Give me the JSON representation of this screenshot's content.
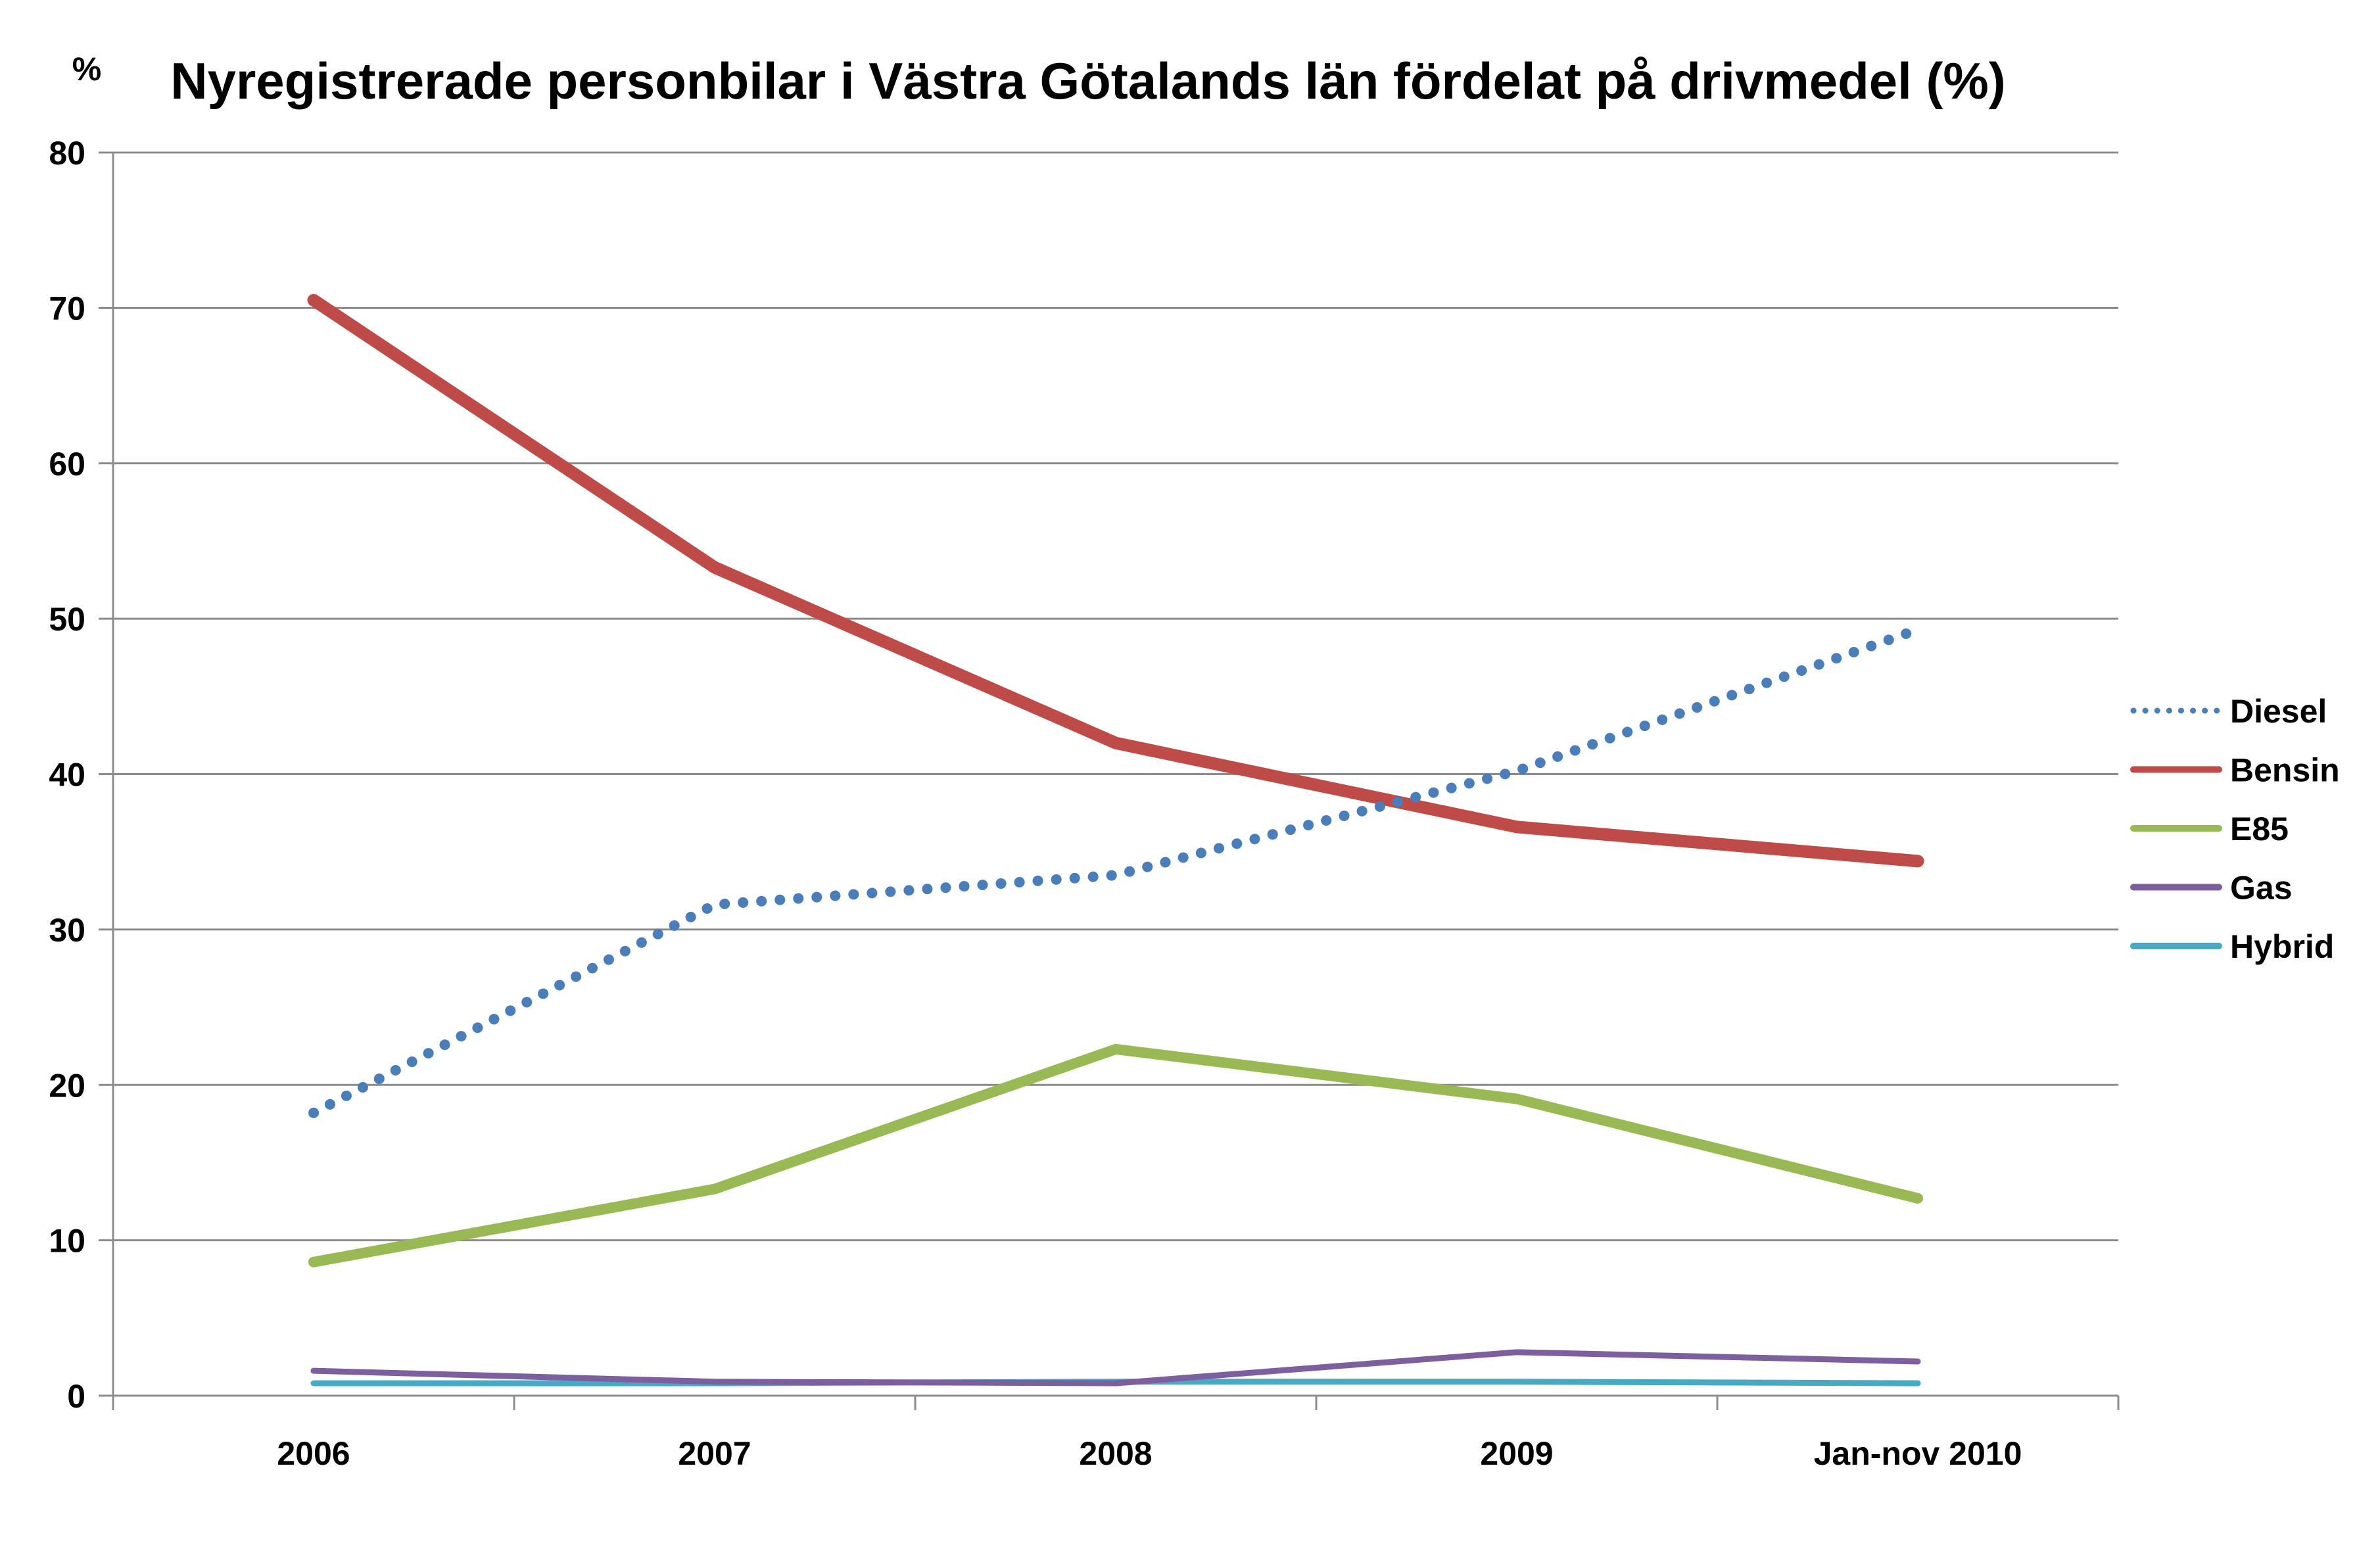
{
  "chart_data": {
    "type": "line",
    "title": "Nyregistrerade personbilar i Västra Götalands  län fördelat på drivmedel (%)",
    "ylabel": "%",
    "xlabel": "",
    "categories": [
      "2006",
      "2007",
      "2008",
      "2009",
      "Jan-nov 2010"
    ],
    "ylim": [
      0,
      80
    ],
    "yticks": [
      0,
      10,
      20,
      30,
      40,
      50,
      60,
      70,
      80
    ],
    "grid": true,
    "legend_position": "right",
    "series": [
      {
        "name": "Diesel",
        "values": [
          18.2,
          31.6,
          33.5,
          40.2,
          49.3
        ],
        "color": "#4a7ebb",
        "style": "dotted"
      },
      {
        "name": "Bensin",
        "values": [
          70.5,
          53.3,
          42.0,
          36.6,
          34.4
        ],
        "color": "#be4b48",
        "style": "solid"
      },
      {
        "name": "E85",
        "values": [
          8.6,
          13.3,
          22.3,
          19.1,
          12.7
        ],
        "color": "#98b954",
        "style": "solid"
      },
      {
        "name": "Gas",
        "values": [
          1.6,
          0.9,
          0.8,
          2.8,
          2.2
        ],
        "color": "#7d5fa0",
        "style": "solid"
      },
      {
        "name": "Hybrid",
        "values": [
          0.8,
          0.8,
          0.9,
          0.9,
          0.8
        ],
        "color": "#46aac5",
        "style": "solid"
      }
    ]
  }
}
